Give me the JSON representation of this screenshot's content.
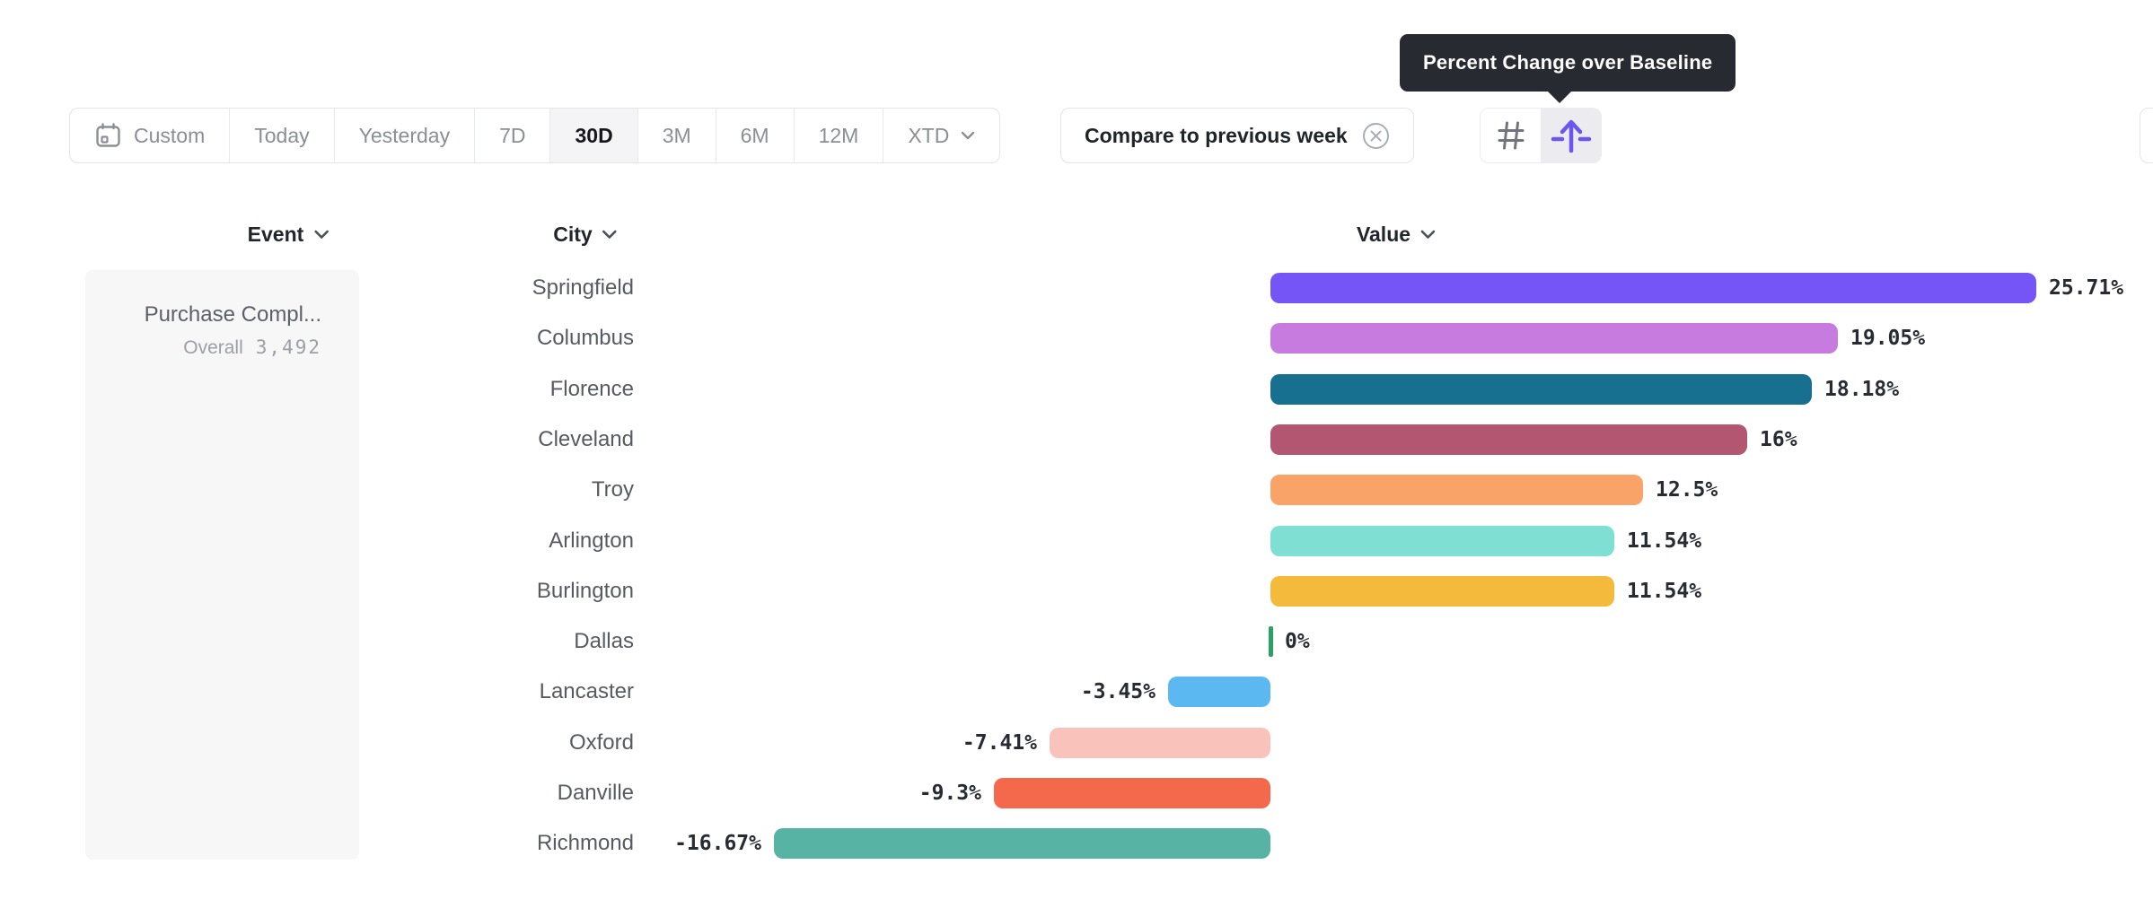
{
  "tooltip": {
    "text": "Percent Change over Baseline"
  },
  "toolbar": {
    "date_ranges": [
      {
        "name": "custom",
        "label": "Custom",
        "icon": "calendar",
        "selected": false
      },
      {
        "name": "today",
        "label": "Today",
        "selected": false
      },
      {
        "name": "yesterday",
        "label": "Yesterday",
        "selected": false
      },
      {
        "name": "7d",
        "label": "7D",
        "selected": false
      },
      {
        "name": "30d",
        "label": "30D",
        "selected": true
      },
      {
        "name": "3m",
        "label": "3M",
        "selected": false
      },
      {
        "name": "6m",
        "label": "6M",
        "selected": false
      },
      {
        "name": "12m",
        "label": "12M",
        "selected": false
      },
      {
        "name": "xtd",
        "label": "XTD",
        "icon": "chevron-down",
        "selected": false
      }
    ],
    "compare": {
      "label": "Compare to previous week",
      "dismiss_icon": "circle-x-icon"
    },
    "view_toggle": [
      {
        "name": "numbers-view",
        "icon": "hash-icon",
        "selected": false
      },
      {
        "name": "percent-change-view",
        "icon": "arrow-up-baseline-icon",
        "selected": true
      }
    ]
  },
  "table": {
    "columns": [
      {
        "label": "Event"
      },
      {
        "label": "City"
      },
      {
        "label": "Value"
      }
    ],
    "event": {
      "name": "Purchase Compl...",
      "overall_label": "Overall",
      "overall_value": "3,492"
    }
  },
  "chart_data": {
    "type": "bar",
    "orientation": "horizontal",
    "unit": "percent change over baseline",
    "xlim": [
      -17,
      26
    ],
    "baseline": 0,
    "categories": [
      "Springfield",
      "Columbus",
      "Florence",
      "Cleveland",
      "Troy",
      "Arlington",
      "Burlington",
      "Dallas",
      "Lancaster",
      "Oxford",
      "Danville",
      "Richmond"
    ],
    "values": [
      25.71,
      19.05,
      18.18,
      16,
      12.5,
      11.54,
      11.54,
      0,
      -3.45,
      -7.41,
      -9.3,
      -16.67
    ],
    "labels": [
      "25.71%",
      "19.05%",
      "18.18%",
      "16%",
      "12.5%",
      "11.54%",
      "11.54%",
      "0%",
      "-3.45%",
      "-7.41%",
      "-9.3%",
      "-16.67%"
    ],
    "colors": [
      "#7655F7",
      "#C77BDE",
      "#17708F",
      "#B25671",
      "#FAA369",
      "#7EDFD2",
      "#F4BA3B",
      "#2AA263",
      "#5CB8F0",
      "#F9C3BC",
      "#F4694B",
      "#57B4A5"
    ]
  },
  "ui_colors": {
    "accent_purple": "#6A57F0",
    "tooltip_bg": "#282a31",
    "selected_segment_bg": "#f4f4f6",
    "panel_bg": "#f7f7f8",
    "border": "#e3e4e8",
    "zero_tick_green": "#2AA263"
  }
}
